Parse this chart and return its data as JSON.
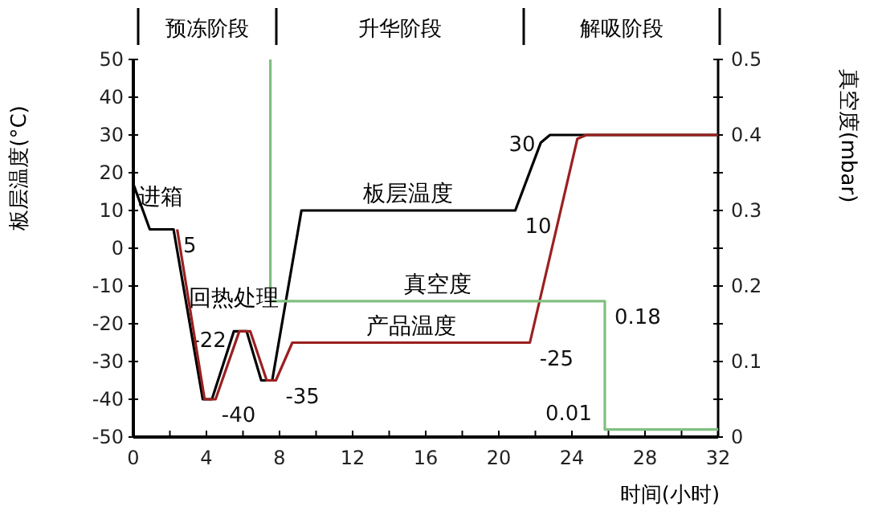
{
  "chart_data": {
    "type": "line",
    "xlabel": "时间(小时)",
    "ylabel": "板层温度(°C)",
    "y2label": "真空度(mbar)",
    "xlim": [
      0,
      32
    ],
    "xticks": [
      0,
      {
        "value": 2,
        "label": null
      },
      4,
      {
        "value": 6,
        "label": null
      },
      8,
      {
        "value": 10,
        "label": null
      },
      12,
      {
        "value": 14,
        "label": null
      },
      16,
      {
        "value": 18,
        "label": null
      },
      20,
      {
        "value": 22,
        "label": null
      },
      24,
      {
        "value": 26,
        "label": null
      },
      28,
      {
        "value": 30,
        "label": null
      },
      32
    ],
    "ylim": [
      -50,
      50
    ],
    "yticks": [
      -50,
      -40,
      -30,
      -20,
      -10,
      0,
      10,
      20,
      30,
      40,
      50
    ],
    "y2lim": [
      0,
      0.5
    ],
    "y2ticks": [
      0,
      {
        "value": 0.05,
        "label": null
      },
      0.1,
      {
        "value": 0.15,
        "label": null
      },
      0.2,
      {
        "value": 0.25,
        "label": null
      },
      0.3,
      {
        "value": 0.35,
        "label": null
      },
      0.4,
      {
        "value": 0.45,
        "label": null
      },
      0.5
    ],
    "series": [
      {
        "name": "板层温度",
        "color": "#000000",
        "x": [
          0,
          0.9,
          2.2,
          3.8,
          4.3,
          5.5,
          6.2,
          7,
          7.6,
          9.2,
          20.9,
          22.3,
          22.8,
          32
        ],
        "values": [
          17,
          5,
          5,
          -40,
          -40,
          -22,
          -22,
          -35,
          -35,
          10,
          10,
          28,
          30,
          30
        ],
        "value_labels": [
          null,
          null,
          "5",
          null,
          "-40",
          "-22",
          null,
          null,
          null,
          null,
          "10",
          null,
          "30",
          null
        ]
      },
      {
        "name": "产品温度",
        "color": "#9b2020",
        "x": [
          2.4,
          3.9,
          4.5,
          5.8,
          6.4,
          7.3,
          7.8,
          8.7,
          21.7,
          24.3,
          24.8,
          32
        ],
        "values": [
          5,
          -40,
          -40,
          -22,
          -22,
          -35,
          -35,
          -25,
          -25,
          29,
          30,
          30
        ],
        "value_labels": [
          null,
          null,
          null,
          null,
          null,
          null,
          "-35",
          null,
          "-25",
          null,
          null,
          null
        ]
      },
      {
        "name": "真空度",
        "color": "#80c080",
        "axis": "y2",
        "x": [
          7.5,
          7.5,
          25.8,
          25.8,
          32
        ],
        "values": [
          0.5,
          0.18,
          0.18,
          0.01,
          0.01
        ],
        "value_labels": [
          null,
          null,
          "0.18",
          "0.01",
          null
        ]
      }
    ],
    "annotations": [
      "预冻阶段",
      "升华阶段",
      "解吸阶段",
      {
        "text": "进箱",
        "x": 1.5,
        "y": 5
      },
      {
        "text": "回热处理",
        "x": 5.5,
        "y": -22
      }
    ]
  }
}
